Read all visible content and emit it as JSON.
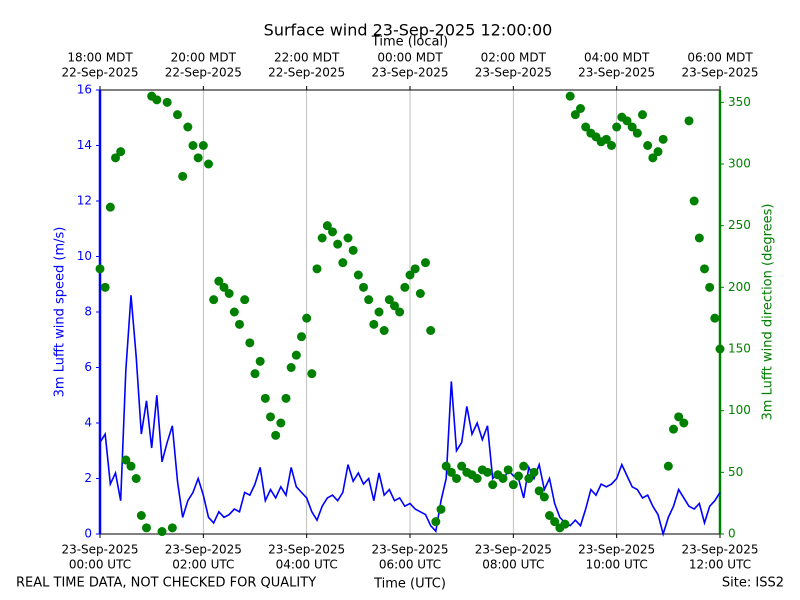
{
  "chart_data": {
    "type": "line",
    "title": "Surface wind 23-Sep-2025 12:00:00",
    "top_xlabel": "Time (local)",
    "xlabel": "Time (UTC)",
    "ylabel": "3m Lufft wind speed (m/s)",
    "y2label": "3m Lufft wind direction (degrees)",
    "footer_left": "REAL TIME DATA, NOT CHECKED FOR QUALITY",
    "footer_right": "Site: ISS2",
    "grid": true,
    "xlim": [
      0,
      12
    ],
    "xticks": [
      {
        "value": 0,
        "label": [
          "23-Sep-2025",
          "00:00 UTC"
        ]
      },
      {
        "value": 2,
        "label": [
          "23-Sep-2025",
          "02:00 UTC"
        ]
      },
      {
        "value": 4,
        "label": [
          "23-Sep-2025",
          "04:00 UTC"
        ]
      },
      {
        "value": 6,
        "label": [
          "23-Sep-2025",
          "06:00 UTC"
        ]
      },
      {
        "value": 8,
        "label": [
          "23-Sep-2025",
          "08:00 UTC"
        ]
      },
      {
        "value": 10,
        "label": [
          "23-Sep-2025",
          "10:00 UTC"
        ]
      },
      {
        "value": 12,
        "label": [
          "23-Sep-2025",
          "12:00 UTC"
        ]
      }
    ],
    "top_xticks": [
      {
        "value": 0,
        "label": [
          "18:00 MDT",
          "22-Sep-2025"
        ]
      },
      {
        "value": 2,
        "label": [
          "20:00 MDT",
          "22-Sep-2025"
        ]
      },
      {
        "value": 4,
        "label": [
          "22:00 MDT",
          "22-Sep-2025"
        ]
      },
      {
        "value": 6,
        "label": [
          "00:00 MDT",
          "23-Sep-2025"
        ]
      },
      {
        "value": 8,
        "label": [
          "02:00 MDT",
          "23-Sep-2025"
        ]
      },
      {
        "value": 10,
        "label": [
          "04:00 MDT",
          "23-Sep-2025"
        ]
      },
      {
        "value": 12,
        "label": [
          "06:00 MDT",
          "23-Sep-2025"
        ]
      }
    ],
    "ylim": [
      0,
      16
    ],
    "yticks": [
      0,
      2,
      4,
      6,
      8,
      10,
      12,
      14,
      16
    ],
    "y2lim": [
      0,
      360
    ],
    "y2ticks": [
      0,
      50,
      100,
      150,
      200,
      250,
      300,
      350
    ],
    "x": [
      0,
      0.1,
      0.2,
      0.3,
      0.4,
      0.5,
      0.6,
      0.7,
      0.8,
      0.9,
      1,
      1.1,
      1.2,
      1.3,
      1.4,
      1.5,
      1.6,
      1.7,
      1.8,
      1.9,
      2,
      2.1,
      2.2,
      2.3,
      2.4,
      2.5,
      2.6,
      2.7,
      2.8,
      2.9,
      3,
      3.1,
      3.2,
      3.3,
      3.4,
      3.5,
      3.6,
      3.7,
      3.8,
      3.9,
      4,
      4.1,
      4.2,
      4.3,
      4.4,
      4.5,
      4.6,
      4.7,
      4.8,
      4.9,
      5,
      5.1,
      5.2,
      5.3,
      5.4,
      5.5,
      5.6,
      5.7,
      5.8,
      5.9,
      6,
      6.1,
      6.2,
      6.3,
      6.4,
      6.5,
      6.6,
      6.7,
      6.8,
      6.9,
      7,
      7.1,
      7.2,
      7.3,
      7.4,
      7.5,
      7.6,
      7.7,
      7.8,
      7.9,
      8,
      8.1,
      8.2,
      8.3,
      8.4,
      8.5,
      8.6,
      8.7,
      8.8,
      8.9,
      9,
      9.1,
      9.2,
      9.3,
      9.4,
      9.5,
      9.6,
      9.7,
      9.8,
      9.9,
      10,
      10.1,
      10.2,
      10.3,
      10.4,
      10.5,
      10.6,
      10.7,
      10.8,
      10.9,
      11,
      11.1,
      11.2,
      11.3,
      11.4,
      11.5,
      11.6,
      11.7,
      11.8,
      11.9,
      12
    ],
    "series": [
      {
        "color": "#0000ff",
        "style": "line",
        "values": [
          3.3,
          3.6,
          1.8,
          2.2,
          1.2,
          5.9,
          8.6,
          6.4,
          3.6,
          4.8,
          3.1,
          5.0,
          2.6,
          3.3,
          3.9,
          1.9,
          0.6,
          1.2,
          1.5,
          2.0,
          1.4,
          0.6,
          0.4,
          0.8,
          0.6,
          0.7,
          0.9,
          0.8,
          1.5,
          1.4,
          1.8,
          2.4,
          1.2,
          1.6,
          1.3,
          1.7,
          1.4,
          2.4,
          1.7,
          1.5,
          1.3,
          0.8,
          0.5,
          1.0,
          1.3,
          1.4,
          1.2,
          1.5,
          2.5,
          1.9,
          2.2,
          1.8,
          2.0,
          1.2,
          2.2,
          1.4,
          1.6,
          1.2,
          1.3,
          1.0,
          1.1,
          0.9,
          0.8,
          0.7,
          0.3,
          0.1,
          1.2,
          2.0,
          5.5,
          3.0,
          3.3,
          4.6,
          3.6,
          4.0,
          3.4,
          3.9,
          2.0,
          2.2,
          1.9,
          2.3,
          2.1,
          2.0,
          1.3,
          2.4,
          2.0,
          2.5,
          1.6,
          2.0,
          1.1,
          0.6,
          0.4,
          0.3,
          0.5,
          0.3,
          0.9,
          1.6,
          1.4,
          1.8,
          1.7,
          1.8,
          2.0,
          2.5,
          2.1,
          1.7,
          1.6,
          1.3,
          1.4,
          1.0,
          0.7,
          0.0,
          0.6,
          1.0,
          1.6,
          1.3,
          1.0,
          0.9,
          1.1,
          0.4,
          1.0,
          1.2,
          1.5
        ]
      },
      {
        "color": "#008000",
        "style": "scatter",
        "axis": "y2",
        "values": [
          215,
          200,
          265,
          305,
          310,
          60,
          55,
          45,
          15,
          5,
          355,
          352,
          2,
          350,
          5,
          340,
          290,
          330,
          315,
          305,
          315,
          300,
          190,
          205,
          200,
          195,
          180,
          170,
          190,
          155,
          130,
          140,
          110,
          95,
          80,
          90,
          110,
          135,
          145,
          160,
          175,
          130,
          215,
          240,
          250,
          245,
          235,
          220,
          240,
          230,
          210,
          200,
          190,
          170,
          180,
          165,
          190,
          185,
          180,
          200,
          210,
          215,
          195,
          220,
          165,
          10,
          20,
          55,
          50,
          45,
          55,
          50,
          48,
          45,
          52,
          50,
          40,
          48,
          45,
          52,
          40,
          47,
          55,
          45,
          50,
          35,
          30,
          15,
          10,
          5,
          8,
          355,
          340,
          345,
          330,
          325,
          322,
          318,
          320,
          315,
          330,
          338,
          335,
          330,
          325,
          340,
          315,
          305,
          310,
          320,
          55,
          85,
          95,
          90,
          335,
          270,
          240,
          215,
          200,
          175,
          150
        ]
      }
    ]
  }
}
